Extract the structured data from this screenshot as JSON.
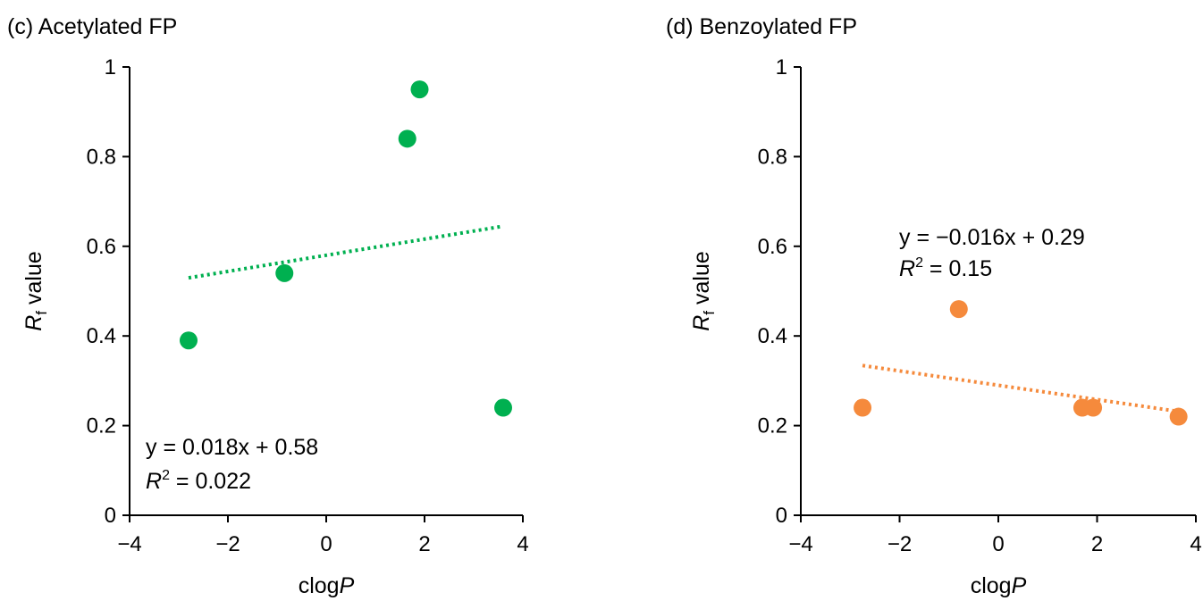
{
  "chart_data": [
    {
      "panel": "c",
      "type": "scatter",
      "title": "(c) Acetylated FP",
      "xlabel_prefix": "clog",
      "xlabel_italic": "P",
      "ylabel_italic": "R",
      "ylabel_sub": "f",
      "ylabel_rest": " value",
      "xlim": [
        -4,
        4
      ],
      "ylim": [
        0,
        1
      ],
      "xticks": [
        "−4",
        "−2",
        "0",
        "2",
        "4"
      ],
      "yticks": [
        "0",
        "0.2",
        "0.4",
        "0.6",
        "0.8",
        "1"
      ],
      "color": "#00b050",
      "points": [
        {
          "x": -2.8,
          "y": 0.39
        },
        {
          "x": -0.85,
          "y": 0.54
        },
        {
          "x": 1.65,
          "y": 0.84
        },
        {
          "x": 1.9,
          "y": 0.95
        },
        {
          "x": 3.6,
          "y": 0.24
        }
      ],
      "trendline": {
        "slope": 0.018,
        "intercept": 0.58,
        "x_range": [
          -2.8,
          3.6
        ]
      },
      "equation": "y = 0.018x + 0.58",
      "r2_prefix": "R",
      "r2_sup": "2",
      "r2_value": " = 0.022"
    },
    {
      "panel": "d",
      "type": "scatter",
      "title": "(d) Benzoylated FP",
      "xlabel_prefix": "clog",
      "xlabel_italic": "P",
      "ylabel_italic": "R",
      "ylabel_sub": "f",
      "ylabel_rest": " value",
      "xlim": [
        -4,
        4
      ],
      "ylim": [
        0,
        1
      ],
      "xticks": [
        "−4",
        "−2",
        "0",
        "2",
        "4"
      ],
      "yticks": [
        "0",
        "0.2",
        "0.4",
        "0.6",
        "0.8",
        "1"
      ],
      "color": "#f58a3c",
      "points": [
        {
          "x": -2.75,
          "y": 0.24
        },
        {
          "x": -0.8,
          "y": 0.46
        },
        {
          "x": 1.7,
          "y": 0.24
        },
        {
          "x": 1.92,
          "y": 0.24
        },
        {
          "x": 3.65,
          "y": 0.22
        }
      ],
      "trendline": {
        "slope": -0.016,
        "intercept": 0.29,
        "x_range": [
          -2.75,
          3.65
        ]
      },
      "equation": "y = −0.016x + 0.29",
      "r2_prefix": "R",
      "r2_sup": "2",
      "r2_value": " = 0.15"
    }
  ]
}
